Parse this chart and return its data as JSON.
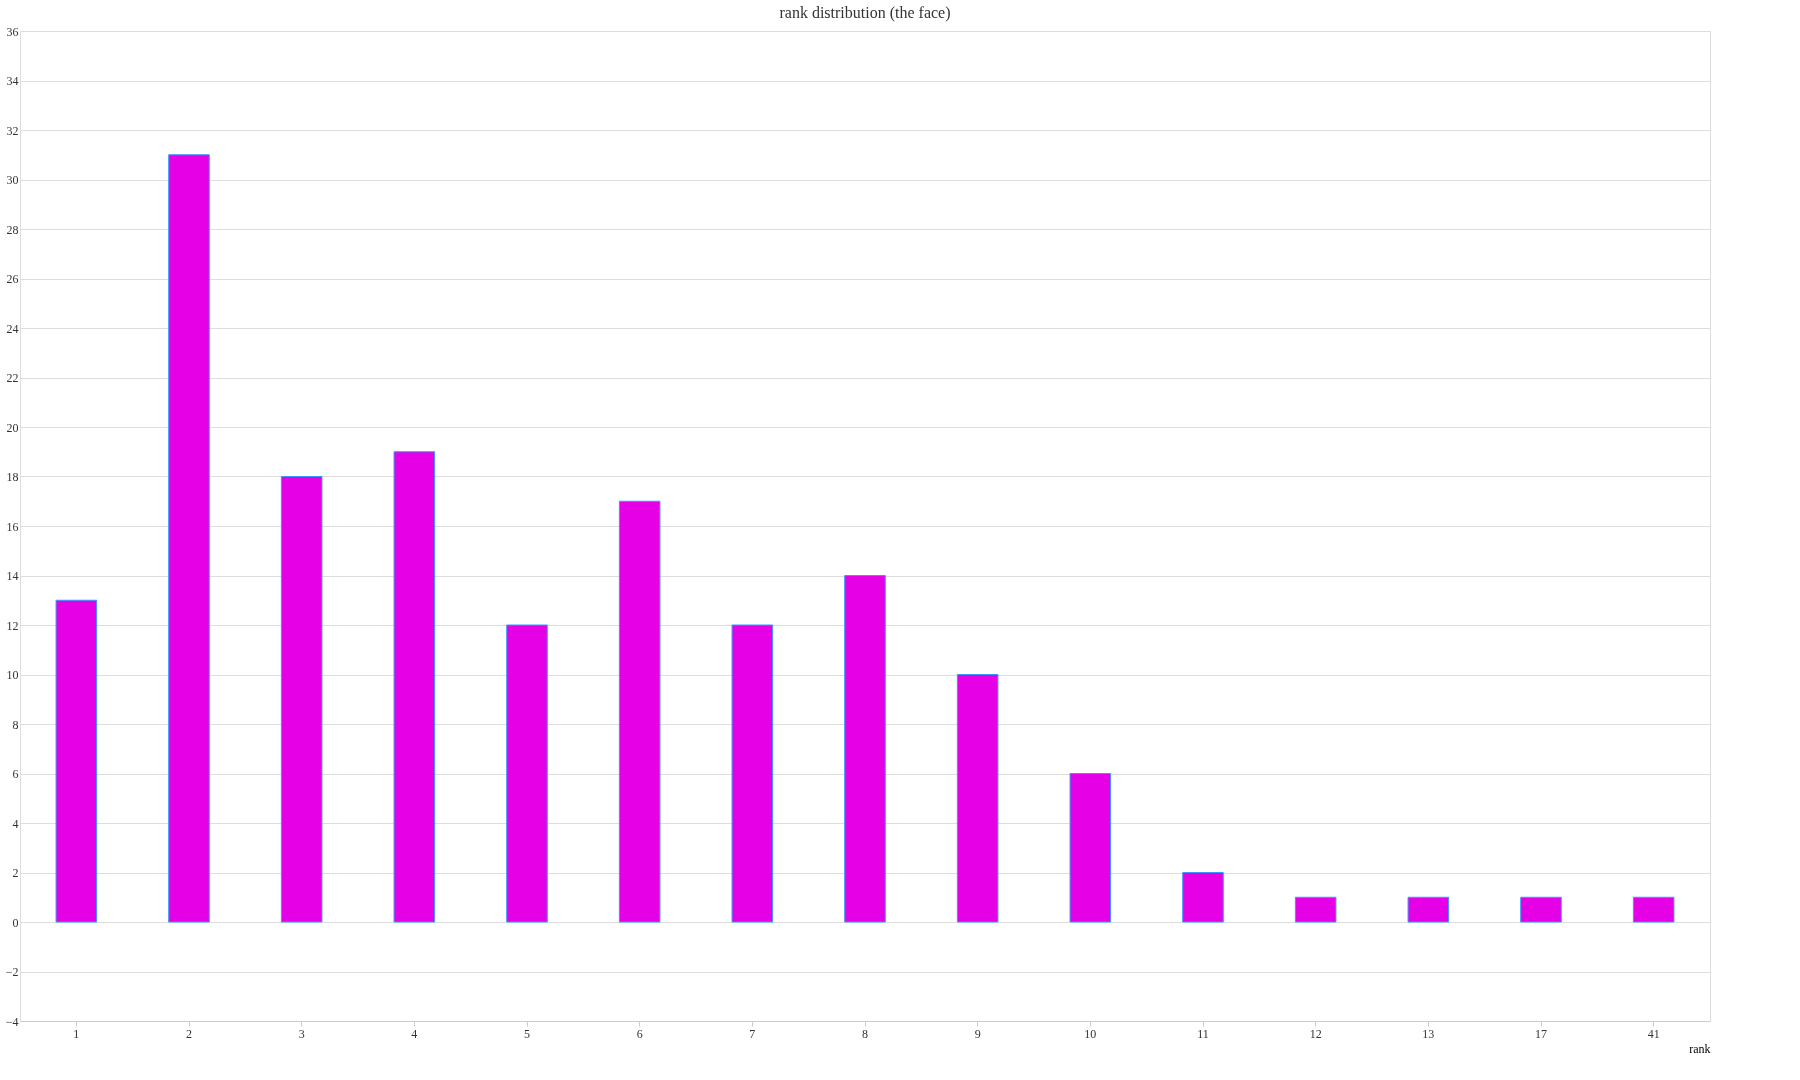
{
  "chart_data": {
    "type": "bar",
    "title": "rank distribution (the face)",
    "xlabel": "rank",
    "categories": [
      "1",
      "2",
      "3",
      "4",
      "5",
      "6",
      "7",
      "8",
      "9",
      "10",
      "11",
      "12",
      "13",
      "17",
      "41"
    ],
    "values": [
      13,
      31,
      18,
      19,
      12,
      17,
      12,
      14,
      10,
      6,
      2,
      1,
      1,
      1,
      1
    ],
    "color": "#e600e6",
    "ylim": [
      -4,
      36
    ],
    "yticks": [
      -4,
      -2,
      0,
      2,
      4,
      6,
      8,
      10,
      12,
      14,
      16,
      18,
      20,
      22,
      24,
      26,
      28,
      30,
      32,
      34,
      36
    ],
    "grid": "y"
  }
}
